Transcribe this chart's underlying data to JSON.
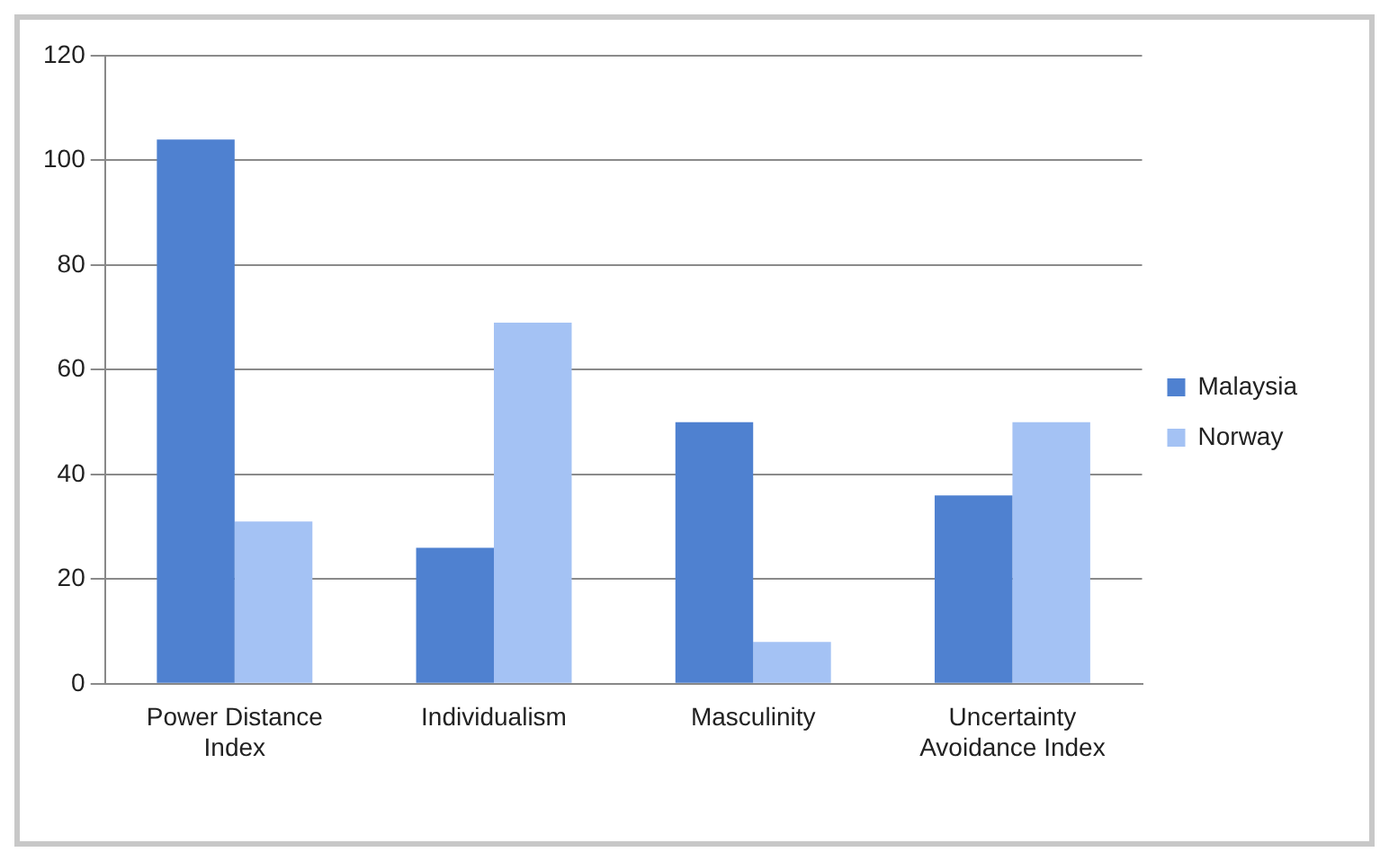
{
  "chart_data": {
    "type": "bar",
    "categories": [
      "Power Distance Index",
      "Individualism",
      "Masculinity",
      "Uncertainty Avoidance Index"
    ],
    "series": [
      {
        "name": "Malaysia",
        "color": "#4f81d0",
        "values": [
          104,
          26,
          50,
          36
        ]
      },
      {
        "name": "Norway",
        "color": "#a4c2f4",
        "values": [
          31,
          69,
          8,
          50
        ]
      }
    ],
    "ylim": [
      0,
      120
    ],
    "yticks": [
      0,
      20,
      40,
      60,
      80,
      100,
      120
    ],
    "grid": "y",
    "legend": "right"
  }
}
